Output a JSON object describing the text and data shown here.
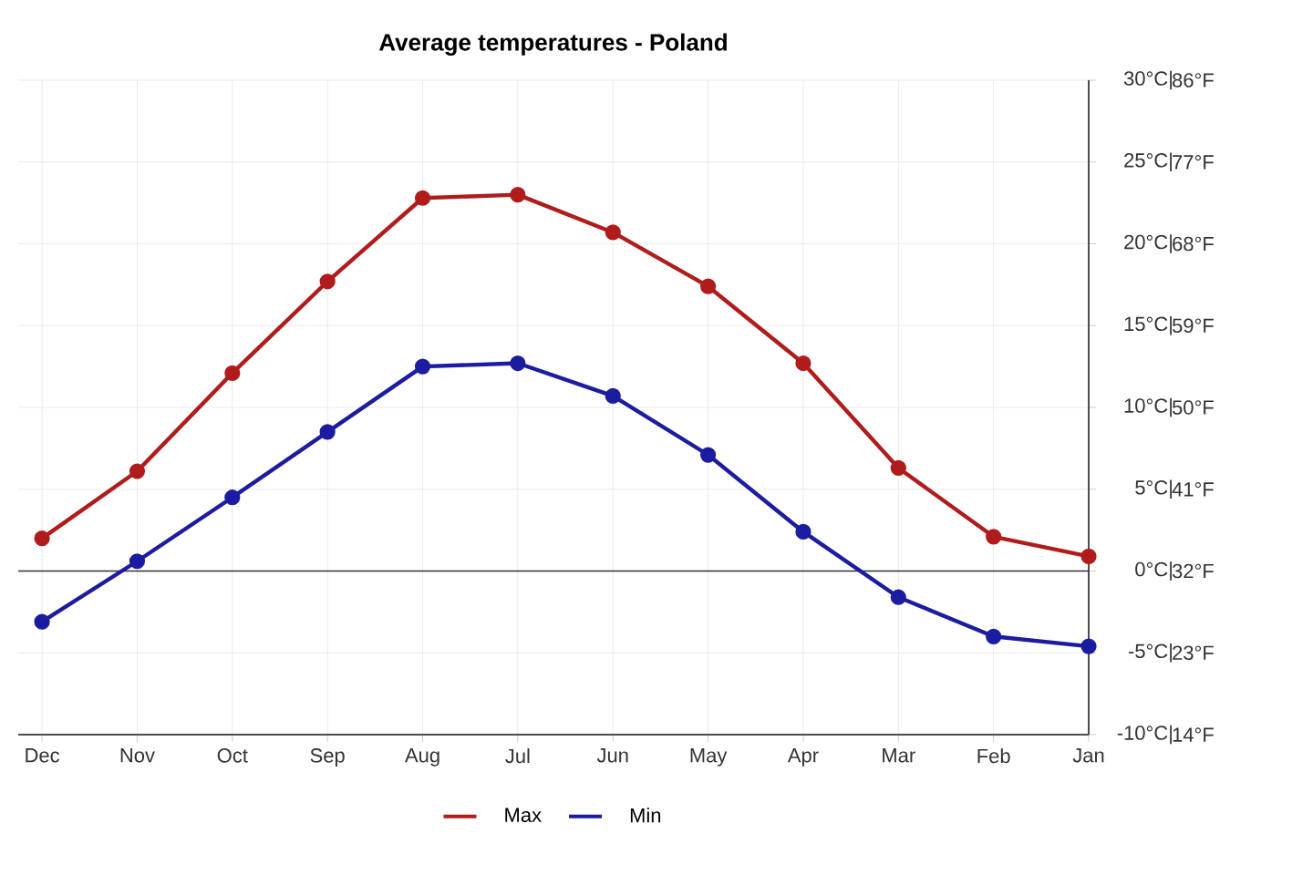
{
  "chart_data": {
    "type": "line",
    "title": "Average temperatures - Poland",
    "categories": [
      "Dec",
      "Nov",
      "Oct",
      "Sep",
      "Aug",
      "Jul",
      "Jun",
      "May",
      "Apr",
      "Mar",
      "Feb",
      "Jan"
    ],
    "series": [
      {
        "name": "Max",
        "color": "#b01c1c",
        "values": [
          2.0,
          6.1,
          12.1,
          17.7,
          22.8,
          23.0,
          20.7,
          17.4,
          12.7,
          6.3,
          2.1,
          0.9
        ]
      },
      {
        "name": "Min",
        "color": "#1c1ca0",
        "values": [
          -3.1,
          0.6,
          4.5,
          8.5,
          12.5,
          12.7,
          10.7,
          7.1,
          2.4,
          -1.6,
          -4.0,
          -4.6
        ]
      }
    ],
    "ylim": [
      -10,
      30
    ],
    "yticks": [
      {
        "value": -10,
        "label": "-10°C|"
      },
      {
        "value": -5,
        "label": "-5°C|"
      },
      {
        "value": 0,
        "label": "0°C|"
      },
      {
        "value": 5,
        "label": "5°C|"
      },
      {
        "value": 10,
        "label": "10°C|"
      },
      {
        "value": 15,
        "label": "15°C|"
      },
      {
        "value": 20,
        "label": "20°C|"
      },
      {
        "value": 25,
        "label": "25°C|"
      },
      {
        "value": 30,
        "label": "30°C|"
      }
    ],
    "y2lim": [
      14,
      86
    ],
    "y2ticks": [
      {
        "value": 14,
        "label": "14°F"
      },
      {
        "value": 23,
        "label": "23°F"
      },
      {
        "value": 32,
        "label": "32°F"
      },
      {
        "value": 41,
        "label": "41°F"
      },
      {
        "value": 50,
        "label": "50°F"
      },
      {
        "value": 59,
        "label": "59°F"
      },
      {
        "value": 68,
        "label": "68°F"
      },
      {
        "value": 77,
        "label": "77°F"
      },
      {
        "value": 86,
        "label": "86°F"
      }
    ],
    "ref_lines": [
      {
        "axis": "y",
        "value": 0,
        "color": "#333333"
      }
    ],
    "grid": true,
    "legend": "bottom",
    "marker": "circle",
    "line_style": "solid"
  }
}
